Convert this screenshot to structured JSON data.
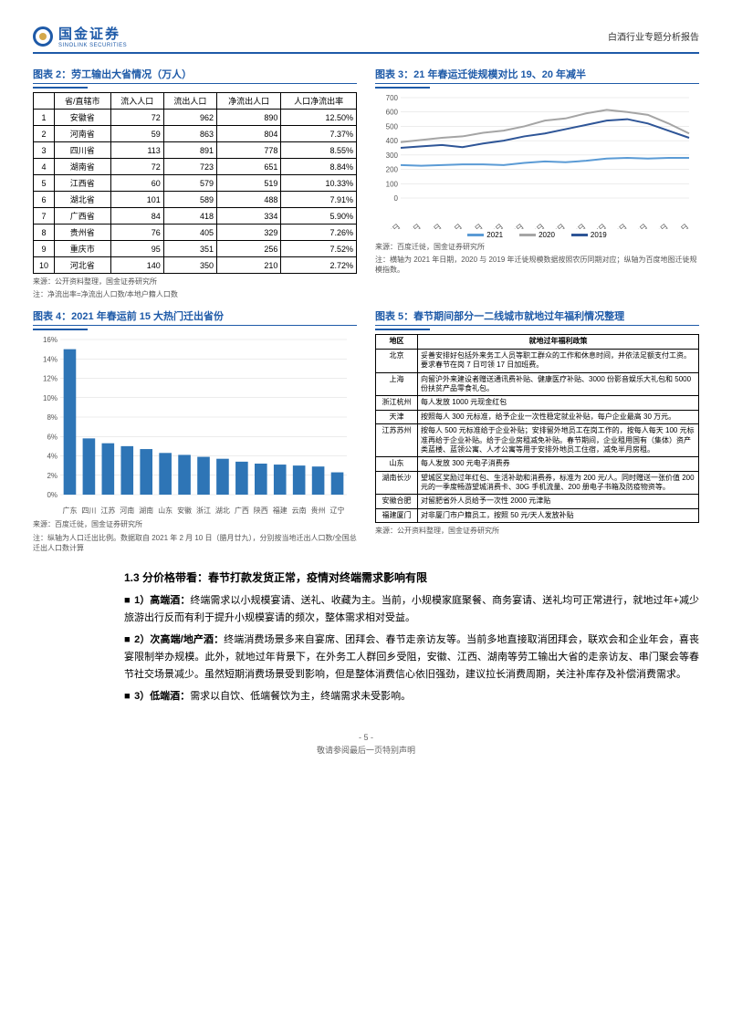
{
  "header": {
    "logo_cn": "国金证券",
    "logo_en": "SINOLINK SECURITIES",
    "doc_title": "白酒行业专题分析报告"
  },
  "chart2": {
    "title": "图表 2：劳工输出大省情况（万人）",
    "columns": [
      "",
      "省/直辖市",
      "流入人口",
      "流出人口",
      "净流出人口",
      "人口净流出率"
    ],
    "rows": [
      [
        "1",
        "安徽省",
        "72",
        "962",
        "890",
        "12.50%"
      ],
      [
        "2",
        "河南省",
        "59",
        "863",
        "804",
        "7.37%"
      ],
      [
        "3",
        "四川省",
        "113",
        "891",
        "778",
        "8.55%"
      ],
      [
        "4",
        "湖南省",
        "72",
        "723",
        "651",
        "8.84%"
      ],
      [
        "5",
        "江西省",
        "60",
        "579",
        "519",
        "10.33%"
      ],
      [
        "6",
        "湖北省",
        "101",
        "589",
        "488",
        "7.91%"
      ],
      [
        "7",
        "广西省",
        "84",
        "418",
        "334",
        "5.90%"
      ],
      [
        "8",
        "贵州省",
        "76",
        "405",
        "329",
        "7.26%"
      ],
      [
        "9",
        "重庆市",
        "95",
        "351",
        "256",
        "7.52%"
      ],
      [
        "10",
        "河北省",
        "140",
        "350",
        "210",
        "2.72%"
      ]
    ],
    "source": "来源：公开资料整理，国金证券研究所",
    "note": "注：净流出率=净流出人口数/本地户籍人口数"
  },
  "chart3": {
    "title": "图表 3：21 年春运迁徙规模对比 19、20 年减半",
    "ylim": [
      0,
      700
    ],
    "ytick_step": 100,
    "x_labels": [
      "1月28日",
      "1月29日",
      "1月30日",
      "1月31日",
      "2月1日",
      "2月2日",
      "2月3日",
      "2月4日",
      "2月5日",
      "2月6日",
      "2月7日",
      "2月8日",
      "2月9日",
      "2月10日",
      "2月11日"
    ],
    "series": [
      {
        "name": "2021",
        "color": "#5b9bd5",
        "values": [
          230,
          225,
          230,
          235,
          235,
          230,
          245,
          255,
          250,
          260,
          275,
          280,
          275,
          280,
          280
        ]
      },
      {
        "name": "2020",
        "color": "#a5a5a5",
        "values": [
          390,
          405,
          420,
          430,
          455,
          470,
          500,
          540,
          555,
          590,
          615,
          600,
          580,
          520,
          450
        ]
      },
      {
        "name": "2019",
        "color": "#2e5597",
        "values": [
          350,
          360,
          370,
          355,
          380,
          400,
          430,
          450,
          480,
          510,
          540,
          550,
          520,
          470,
          420
        ]
      }
    ],
    "grid_color": "#d9d9d9",
    "source": "来源：百度迁徙，国金证券研究所",
    "note": "注：横轴为 2021 年日期，2020 与 2019 年迁徙规模数据按照农历同期对应；纵轴为百度地图迁徙规模指数。"
  },
  "chart4": {
    "title": "图表 4：2021 年春运前 15 大热门迁出省份",
    "type": "bar",
    "categories": [
      "广东",
      "四川",
      "江苏",
      "河南",
      "湖南",
      "山东",
      "安徽",
      "浙江",
      "湖北",
      "广西",
      "陕西",
      "福建",
      "云南",
      "贵州",
      "辽宁"
    ],
    "values": [
      15.0,
      5.8,
      5.3,
      5.0,
      4.7,
      4.3,
      4.1,
      3.9,
      3.7,
      3.4,
      3.2,
      3.1,
      3.0,
      2.9,
      2.3
    ],
    "ylim": [
      0,
      16
    ],
    "ytick_step": 2,
    "y_suffix": "%",
    "bar_color": "#2e75b6",
    "source": "来源：百度迁徙，国金证券研究所",
    "note": "注：纵轴为人口迁出比例。数据取自 2021 年 2 月 10 日（腊月廿九），分别按当地迁出人口数/全国总迁出人口数计算"
  },
  "chart5": {
    "title": "图表 5：春节期间部分一二线城市就地过年福利情况整理",
    "columns": [
      "地区",
      "就地过年福利政策"
    ],
    "rows": [
      [
        "北京",
        "妥善安排好包括外来务工人员等职工群众的工作和休息时间，并依法足额支付工资。要求春节在岗 7 日可领 17 日加班费。"
      ],
      [
        "上海",
        "向留沪外来建设者赠送通讯费补贴、健康医疗补贴、3000 份影音娱乐大礼包和 5000 份扶贫产品零食礼包。"
      ],
      [
        "浙江杭州",
        "每人发放 1000 元现金红包"
      ],
      [
        "天津",
        "按照每人 300 元标准，给予企业一次性稳定就业补贴，每户企业最高 30 万元。"
      ],
      [
        "江苏苏州",
        "按每人 500 元标准给于企业补贴；安排留外地员工在岗工作的，按每人每天 100 元标准再给于企业补贴。给于企业房租减免补贴。春节期间，企业租用国有（集体）资产类蓝楼、蓝领公寓、人才公寓等用于安排外地员工住宿，减免半月房租。"
      ],
      [
        "山东",
        "每人发放 300 元电子消费券"
      ],
      [
        "湖南长沙",
        "望城区奖励过年红包、生活补助和消费券，标准为 200 元/人。同时赠送一张价值 200 元的一季度畅游望城消费卡、30G 手机流量、200 册电子书箱及防疫物资等。"
      ],
      [
        "安徽合肥",
        "对留肥省外人员给予一次性 2000 元津贴"
      ],
      [
        "福建厦门",
        "对非厦门市户籍员工，按照 50 元/天人发放补贴"
      ]
    ],
    "source": "来源：公开资料整理，国金证券研究所"
  },
  "section": {
    "heading": "1.3 分价格带看：春节打款发货正常，疫情对终端需求影响有限",
    "p1_label": "1）高端酒：",
    "p1": "终端需求以小规模宴请、送礼、收藏为主。当前，小规模家庭聚餐、商务宴请、送礼均可正常进行，就地过年+减少旅游出行反而有利于提升小规模宴请的频次，整体需求相对受益。",
    "p2_label": "2）次高端/地产酒：",
    "p2": "终端消费场景多来自宴席、团拜会、春节走亲访友等。当前多地直接取消团拜会，联欢会和企业年会，喜丧宴限制举办规模。此外，就地过年背景下，在外务工人群回乡受阻，安徽、江西、湖南等劳工输出大省的走亲访友、串门聚会等春节社交场景减少。虽然短期消费场景受到影响，但是整体消费信心依旧强劲，建议拉长消费周期，关注补库存及补偿消费需求。",
    "p3_label": "3）低端酒：",
    "p3": "需求以自饮、低端餐饮为主，终端需求未受影响。"
  },
  "footer": {
    "page": "- 5 -",
    "disclaimer": "敬请参阅最后一页特别声明"
  }
}
